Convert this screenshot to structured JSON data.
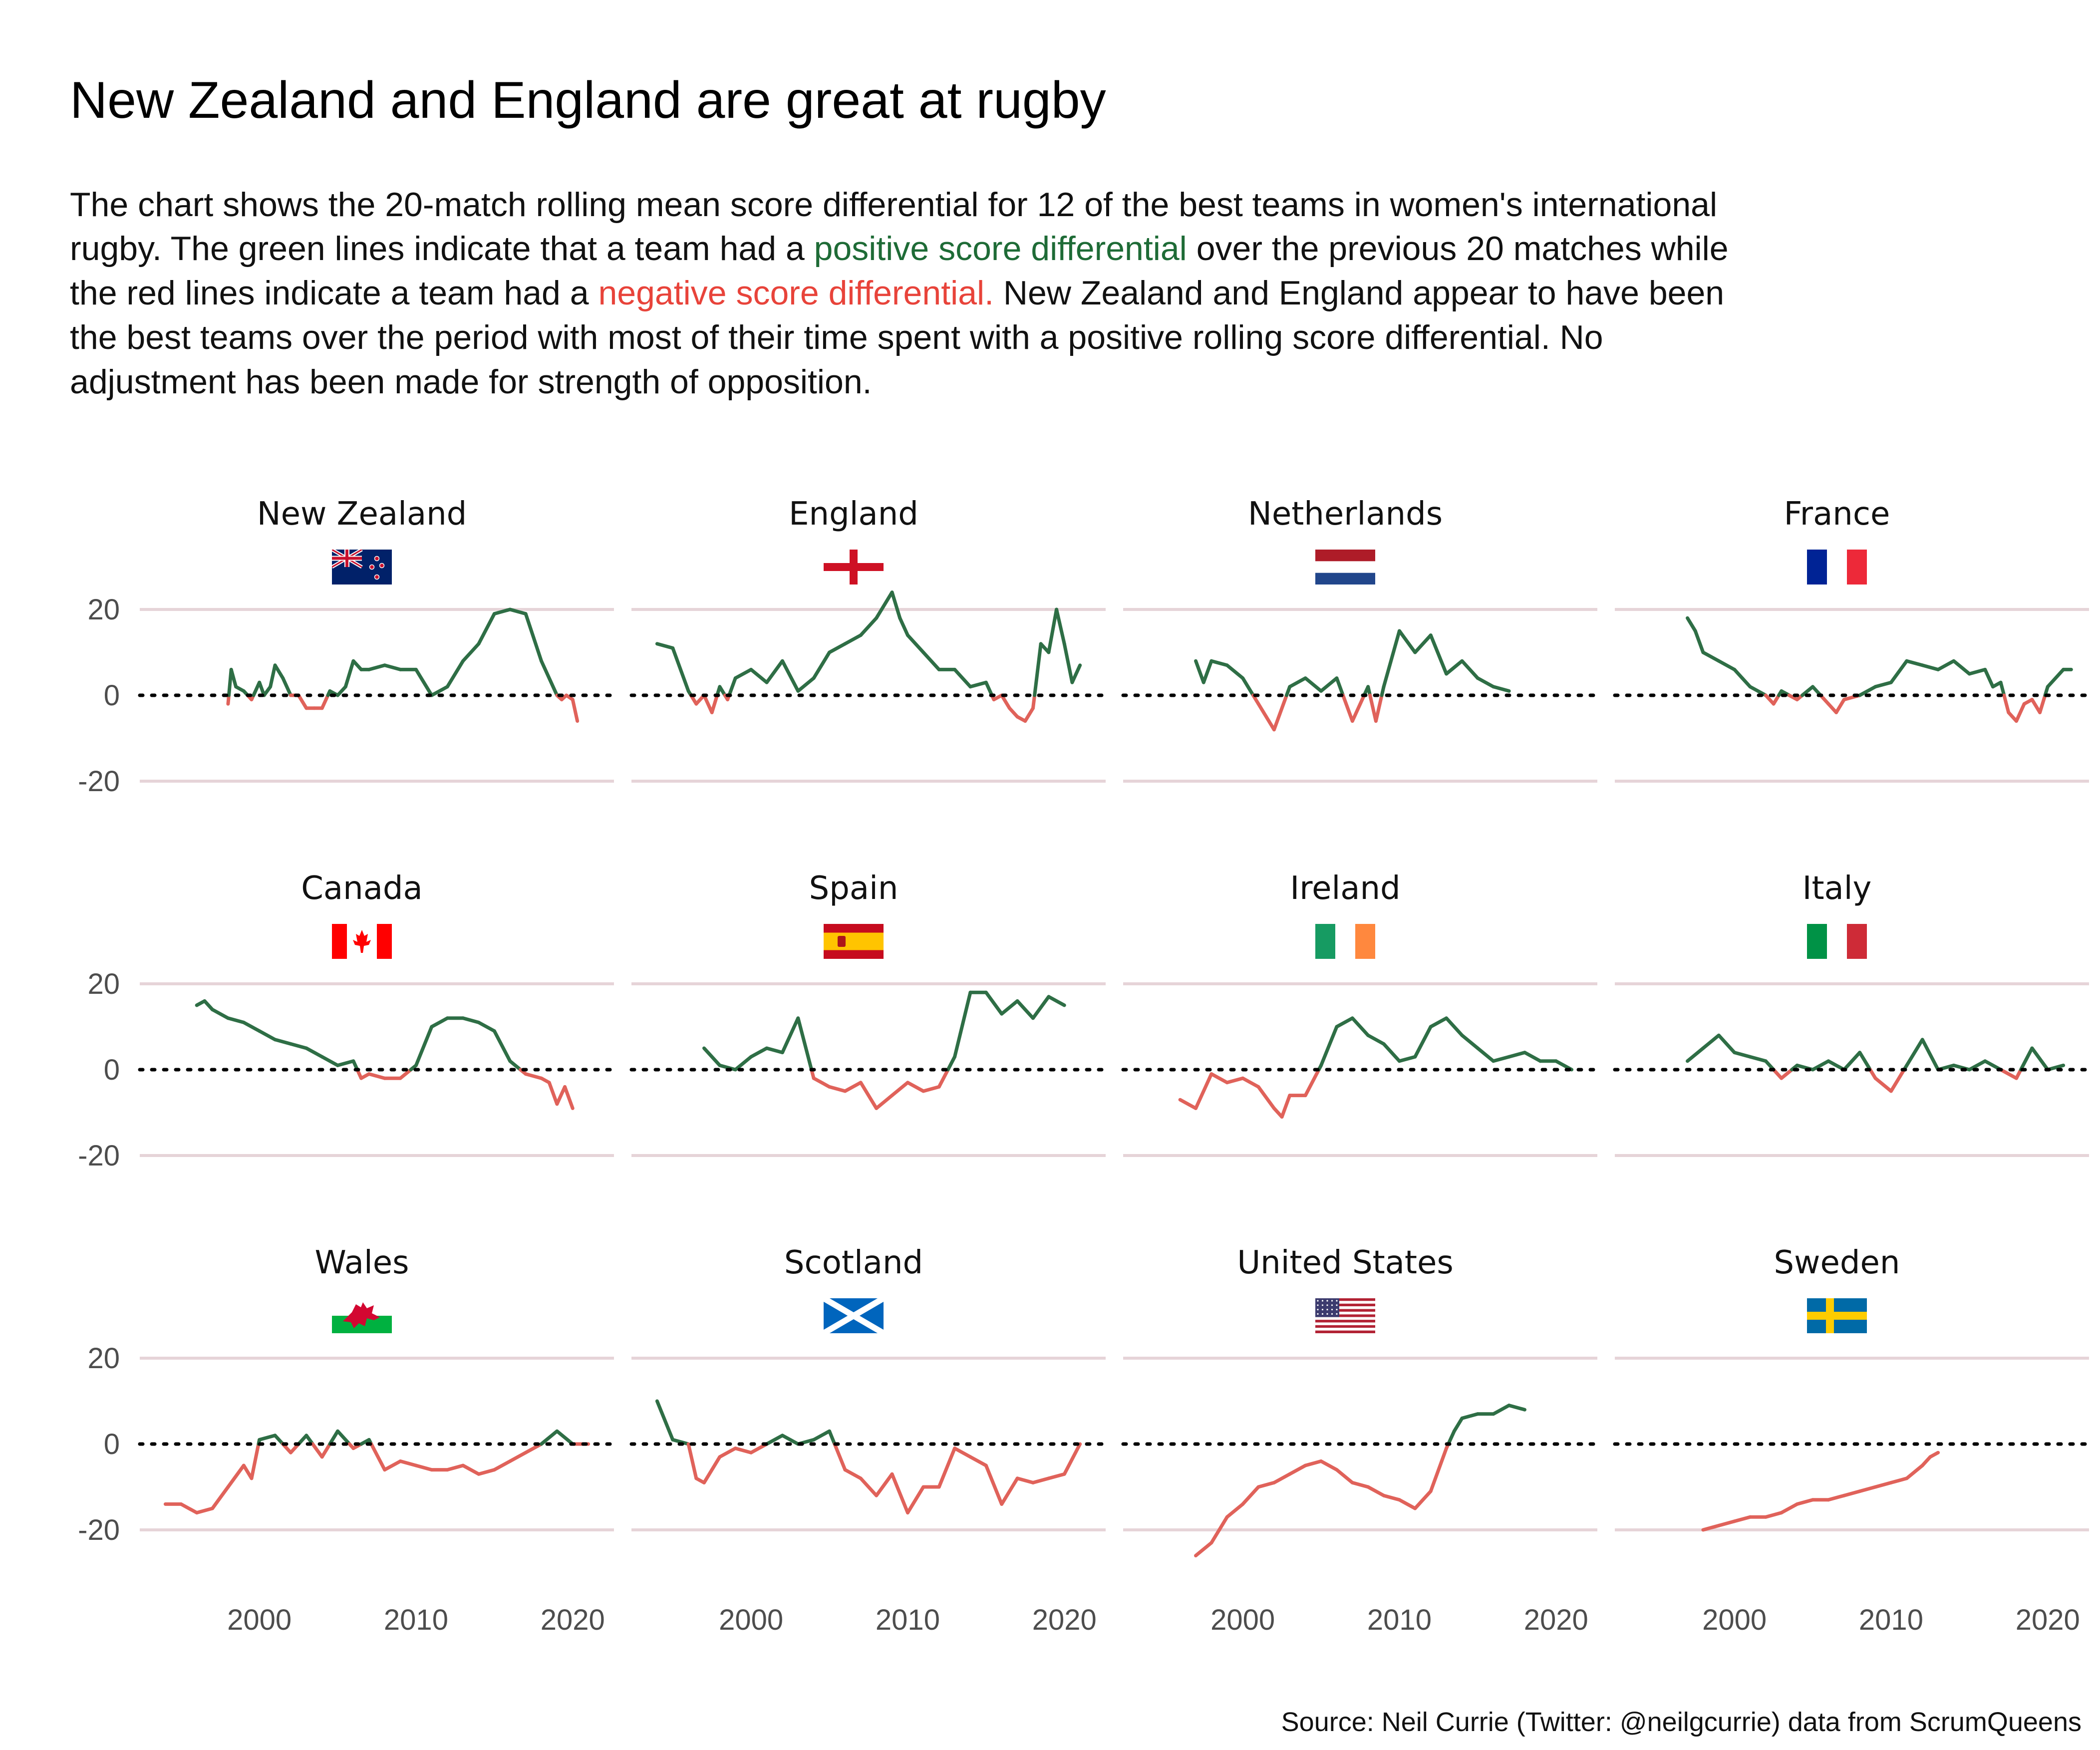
{
  "title": "New Zealand and England are great at rugby",
  "subtitle": {
    "line1": "The chart shows the 20-match rolling mean score differential for 12 of the best teams in women's international",
    "line2_a": "rugby. The green lines indicate that a team had a ",
    "line2_b": "positive score differential",
    "line2_c": " over the previous 20 matches while",
    "line3_a": "the red lines indicate a team had a ",
    "line3_b": "negative score differential.",
    "line3_c": " New Zealand and England appear to have been",
    "line4": "the best teams over the period with most of their time spent with a positive rolling score differential. No",
    "line5": "adjustment has been made for strength of opposition."
  },
  "caption": "Source: Neil Currie (Twitter: @neilgcurrie) data from ScrumQueens",
  "colors": {
    "positive": "#2e6e45",
    "negative": "#e0625a",
    "positive_text": "#1e6b36",
    "negative_text": "#e8433a",
    "gridline": "#e6d4d8",
    "zero_line": "#000000"
  },
  "chart_data": {
    "type": "line",
    "layout": "small multiples 4x3",
    "xlim": [
      1993,
      2022
    ],
    "ylim": [
      -28,
      25
    ],
    "x_ticks": [
      2000,
      2010,
      2020
    ],
    "y_ticks": [
      20,
      0,
      -20
    ],
    "y_tick_labels": [
      "20",
      "0",
      "-20"
    ],
    "reference_line": 0,
    "panels": [
      {
        "team": "New Zealand",
        "flag": "new-zealand",
        "x": [
          1998,
          1998.2,
          1998.5,
          1999,
          1999.5,
          2000,
          2000.3,
          2000.7,
          2001,
          2001.5,
          2002,
          2002.5,
          2003,
          2003.5,
          2004,
          2004.5,
          2005,
          2005.5,
          2006,
          2006.5,
          2007,
          2008,
          2009,
          2010,
          2011,
          2012,
          2013,
          2014,
          2015,
          2016,
          2017,
          2018,
          2019,
          2019.3,
          2019.6,
          2020,
          2020.3
        ],
        "y": [
          -2,
          6,
          2,
          1,
          -1,
          3,
          0,
          2,
          7,
          4,
          0,
          0,
          -3,
          -3,
          -3,
          1,
          0,
          2,
          8,
          6,
          6,
          7,
          6,
          6,
          0,
          2,
          8,
          12,
          19,
          20,
          19,
          8,
          0,
          -1,
          0,
          -1,
          -6
        ]
      },
      {
        "team": "England",
        "flag": "england",
        "x": [
          1994,
          1995,
          1996,
          1996.5,
          1997,
          1997.5,
          1998,
          1998.5,
          1999,
          2000,
          2001,
          2002,
          2003,
          2004,
          2005,
          2006,
          2007,
          2008,
          2009,
          2009.5,
          2010,
          2011,
          2012,
          2013,
          2014,
          2015,
          2015.5,
          2016,
          2016.5,
          2017,
          2017.5,
          2018,
          2018.5,
          2019,
          2019.5,
          2020,
          2020.5,
          2021
        ],
        "y": [
          12,
          11,
          1,
          -2,
          0,
          -4,
          2,
          -1,
          4,
          6,
          3,
          8,
          1,
          4,
          10,
          12,
          14,
          18,
          24,
          18,
          14,
          10,
          6,
          6,
          2,
          3,
          -1,
          0,
          -3,
          -5,
          -6,
          -3,
          12,
          10,
          20,
          12,
          3,
          7
        ]
      },
      {
        "team": "Netherlands",
        "flag": "netherlands",
        "x": [
          1997,
          1997.5,
          1998,
          1999,
          2000,
          2001,
          2002,
          2003,
          2004,
          2005,
          2006,
          2007,
          2008,
          2008.5,
          2009,
          2010,
          2011,
          2012,
          2013,
          2014,
          2015,
          2016,
          2017
        ],
        "y": [
          8,
          3,
          8,
          7,
          4,
          -2,
          -8,
          2,
          4,
          1,
          4,
          -6,
          2,
          -6,
          2,
          15,
          10,
          14,
          5,
          8,
          4,
          2,
          1
        ]
      },
      {
        "team": "France",
        "flag": "france",
        "x": [
          1997,
          1997.5,
          1998,
          1999,
          2000,
          2000.5,
          2001,
          2002,
          2002.5,
          2003,
          2004,
          2005,
          2006,
          2006.5,
          2007,
          2008,
          2009,
          2010,
          2011,
          2012,
          2013,
          2014,
          2015,
          2016,
          2016.5,
          2017,
          2017.5,
          2018,
          2018.5,
          2019,
          2019.5,
          2020,
          2021,
          2021.5
        ],
        "y": [
          18,
          15,
          10,
          8,
          6,
          4,
          2,
          0,
          -2,
          1,
          -1,
          2,
          -2,
          -4,
          -1,
          0,
          2,
          3,
          8,
          7,
          6,
          8,
          5,
          6,
          2,
          3,
          -4,
          -6,
          -2,
          -1,
          -4,
          2,
          6,
          6
        ]
      },
      {
        "team": "Canada",
        "flag": "canada",
        "x": [
          1996,
          1996.5,
          1997,
          1998,
          1999,
          2000,
          2001,
          2002,
          2003,
          2004,
          2005,
          2006,
          2006.5,
          2007,
          2008,
          2009,
          2010,
          2011,
          2012,
          2013,
          2014,
          2015,
          2016,
          2017,
          2018,
          2018.5,
          2019,
          2019.5,
          2020
        ],
        "y": [
          15,
          16,
          14,
          12,
          11,
          9,
          7,
          6,
          5,
          3,
          1,
          2,
          -2,
          -1,
          -2,
          -2,
          1,
          10,
          12,
          12,
          11,
          9,
          2,
          -1,
          -2,
          -3,
          -8,
          -4,
          -9
        ]
      },
      {
        "team": "Spain",
        "flag": "spain",
        "x": [
          1997,
          1998,
          1999,
          2000,
          2001,
          2002,
          2003,
          2004,
          2005,
          2006,
          2007,
          2008,
          2009,
          2010,
          2011,
          2012,
          2013,
          2014,
          2015,
          2016,
          2017,
          2018,
          2019,
          2020
        ],
        "y": [
          5,
          1,
          0,
          3,
          5,
          4,
          12,
          -2,
          -4,
          -5,
          -3,
          -9,
          -6,
          -3,
          -5,
          -4,
          3,
          18,
          18,
          13,
          16,
          12,
          17,
          15
        ]
      },
      {
        "team": "Ireland",
        "flag": "ireland",
        "x": [
          1996,
          1997,
          1998,
          1999,
          2000,
          2001,
          2002,
          2002.5,
          2003,
          2004,
          2005,
          2006,
          2007,
          2008,
          2009,
          2010,
          2011,
          2012,
          2013,
          2014,
          2015,
          2016,
          2017,
          2018,
          2019,
          2020,
          2021
        ],
        "y": [
          -7,
          -9,
          -1,
          -3,
          -2,
          -4,
          -9,
          -11,
          -6,
          -6,
          1,
          10,
          12,
          8,
          6,
          2,
          3,
          10,
          12,
          8,
          5,
          2,
          3,
          4,
          2,
          2,
          0
        ]
      },
      {
        "team": "Italy",
        "flag": "italy",
        "x": [
          1997,
          1998,
          1999,
          2000,
          2001,
          2002,
          2003,
          2004,
          2005,
          2006,
          2007,
          2008,
          2009,
          2010,
          2011,
          2012,
          2013,
          2014,
          2015,
          2016,
          2017,
          2018,
          2019,
          2020,
          2021
        ],
        "y": [
          2,
          5,
          8,
          4,
          3,
          2,
          -2,
          1,
          0,
          2,
          0,
          4,
          -2,
          -5,
          1,
          7,
          0,
          1,
          0,
          2,
          0,
          -2,
          5,
          0,
          1
        ]
      },
      {
        "team": "Wales",
        "flag": "wales",
        "x": [
          1994,
          1995,
          1996,
          1997,
          1998,
          1999,
          1999.5,
          2000,
          2001,
          2002,
          2003,
          2004,
          2005,
          2006,
          2007,
          2008,
          2009,
          2010,
          2011,
          2012,
          2013,
          2014,
          2015,
          2016,
          2017,
          2018,
          2019,
          2020,
          2021
        ],
        "y": [
          -14,
          -14,
          -16,
          -15,
          -10,
          -5,
          -8,
          1,
          2,
          -2,
          2,
          -3,
          3,
          -1,
          1,
          -6,
          -4,
          -5,
          -6,
          -6,
          -5,
          -7,
          -6,
          -4,
          -2,
          0,
          3,
          0,
          0
        ]
      },
      {
        "team": "Scotland",
        "flag": "scotland",
        "x": [
          1994,
          1995,
          1996,
          1996.5,
          1997,
          1998,
          1999,
          2000,
          2001,
          2002,
          2003,
          2004,
          2005,
          2006,
          2007,
          2008,
          2009,
          2010,
          2011,
          2012,
          2013,
          2014,
          2015,
          2016,
          2017,
          2018,
          2019,
          2020,
          2021
        ],
        "y": [
          10,
          1,
          0,
          -8,
          -9,
          -3,
          -1,
          -2,
          0,
          2,
          0,
          1,
          3,
          -6,
          -8,
          -12,
          -7,
          -16,
          -10,
          -10,
          -1,
          -3,
          -5,
          -14,
          -8,
          -9,
          -8,
          -7,
          0
        ]
      },
      {
        "team": "United States",
        "flag": "united-states",
        "x": [
          1997,
          1998,
          1999,
          2000,
          2001,
          2002,
          2003,
          2004,
          2005,
          2006,
          2007,
          2008,
          2009,
          2010,
          2011,
          2012,
          2013,
          2013.5,
          2014,
          2015,
          2016,
          2017,
          2018
        ],
        "y": [
          -26,
          -23,
          -17,
          -14,
          -10,
          -9,
          -7,
          -5,
          -4,
          -6,
          -9,
          -10,
          -12,
          -13,
          -15,
          -11,
          -1,
          3,
          6,
          7,
          7,
          9,
          8
        ]
      },
      {
        "team": "Sweden",
        "flag": "sweden",
        "x": [
          1998,
          1999,
          2000,
          2001,
          2002,
          2003,
          2004,
          2005,
          2006,
          2007,
          2008,
          2009,
          2010,
          2011,
          2012,
          2012.5,
          2013
        ],
        "y": [
          -20,
          -19,
          -18,
          -17,
          -17,
          -16,
          -14,
          -13,
          -13,
          -12,
          -11,
          -10,
          -9,
          -8,
          -5,
          -3,
          -2
        ]
      }
    ]
  }
}
